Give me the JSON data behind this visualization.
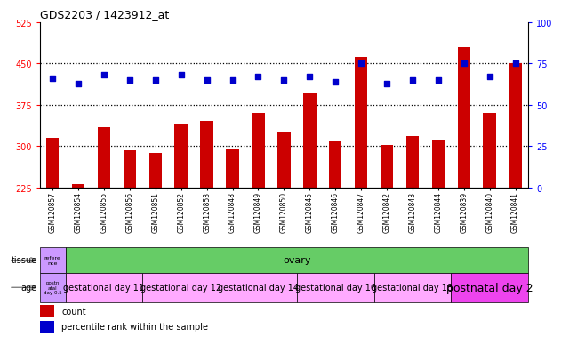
{
  "title": "GDS2203 / 1423912_at",
  "samples": [
    "GSM120857",
    "GSM120854",
    "GSM120855",
    "GSM120856",
    "GSM120851",
    "GSM120852",
    "GSM120853",
    "GSM120848",
    "GSM120849",
    "GSM120850",
    "GSM120845",
    "GSM120846",
    "GSM120847",
    "GSM120842",
    "GSM120843",
    "GSM120844",
    "GSM120839",
    "GSM120840",
    "GSM120841"
  ],
  "counts": [
    315,
    232,
    335,
    292,
    288,
    340,
    345,
    295,
    360,
    325,
    395,
    308,
    462,
    302,
    318,
    310,
    480,
    360,
    450
  ],
  "percentiles": [
    66,
    63,
    68,
    65,
    65,
    68,
    65,
    65,
    67,
    65,
    67,
    64,
    75,
    63,
    65,
    65,
    75,
    67,
    75
  ],
  "bar_color": "#cc0000",
  "dot_color": "#0000cc",
  "ylim_left": [
    225,
    525
  ],
  "ylim_right": [
    0,
    100
  ],
  "yticks_left": [
    225,
    300,
    375,
    450,
    525
  ],
  "yticks_right": [
    0,
    25,
    50,
    75,
    100
  ],
  "grid_yticks": [
    300,
    375,
    450
  ],
  "bg_plot": "#ffffff",
  "tissue_row": {
    "first_label": "refere\nnce",
    "first_color": "#cc99ff",
    "second_label": "ovary",
    "second_color": "#66cc66"
  },
  "age_row": {
    "first_label": "postn\natal\nday 0.5",
    "first_color": "#cc99ff",
    "groups": [
      {
        "label": "gestational day 11",
        "color": "#ffaaff",
        "count": 3
      },
      {
        "label": "gestational day 12",
        "color": "#ffaaff",
        "count": 3
      },
      {
        "label": "gestational day 14",
        "color": "#ffaaff",
        "count": 3
      },
      {
        "label": "gestational day 16",
        "color": "#ffaaff",
        "count": 3
      },
      {
        "label": "gestational day 18",
        "color": "#ffaaff",
        "count": 3
      },
      {
        "label": "postnatal day 2",
        "color": "#ee44ee",
        "count": 3
      }
    ]
  },
  "legend_count_color": "#cc0000",
  "legend_pct_color": "#0000cc"
}
